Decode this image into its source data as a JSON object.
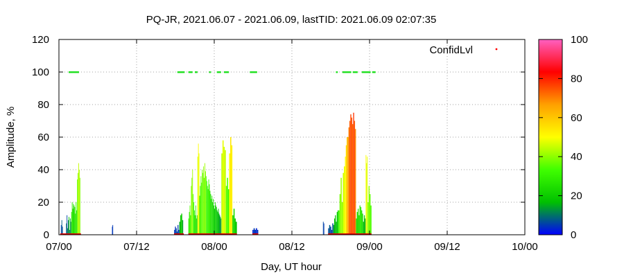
{
  "chart_data": {
    "type": "bar",
    "title": "PQ-JR, 2021.06.07 - 2021.06.09, lastTID: 2021.06.09 02:07:35",
    "xlabel": "Day, UT hour",
    "ylabel": "Amplitude, %",
    "x_ticks": [
      "07/00",
      "07/12",
      "08/00",
      "08/12",
      "09/00",
      "09/12",
      "10/00"
    ],
    "xlim_hours": [
      0,
      72
    ],
    "ylim": [
      0,
      120
    ],
    "y_ticks": [
      0,
      20,
      40,
      60,
      80,
      100,
      120
    ],
    "grid": true,
    "legend": {
      "label": "ConfidLvl",
      "placement": "top-right",
      "marker_color": "#ff0000"
    },
    "colorbar": {
      "ticks": [
        0,
        20,
        40,
        60,
        80,
        100
      ],
      "range": [
        0,
        100
      ],
      "stops": [
        "#0000ff",
        "#00c000",
        "#40ff00",
        "#ffff00",
        "#ffa000",
        "#ff0000",
        "#ff60c0"
      ]
    },
    "segments": [
      {
        "hour_start": 0.3,
        "hour_end": 0.6,
        "amp": [
          6,
          9,
          5
        ],
        "confid": [
          5,
          8,
          6
        ]
      },
      {
        "hour_start": 1.1,
        "hour_end": 1.9,
        "amp": [
          7,
          12,
          4,
          9,
          11,
          3,
          10,
          8
        ],
        "confid": [
          10,
          6,
          12,
          9,
          20,
          8,
          14,
          11
        ]
      },
      {
        "hour_start": 1.9,
        "hour_end": 2.8,
        "amp": [
          14,
          20,
          16,
          19,
          18,
          17,
          13,
          20,
          15
        ],
        "confid": [
          26,
          28,
          25,
          24,
          27,
          26,
          25,
          29,
          24
        ]
      },
      {
        "hour_start": 2.8,
        "hour_end": 3.3,
        "amp": [
          34,
          38,
          44,
          40,
          35
        ],
        "confid": [
          38,
          40,
          45,
          42,
          39
        ]
      },
      {
        "hour_start": 8.2,
        "hour_end": 8.35,
        "amp": [
          5,
          6
        ],
        "confid": [
          4,
          5
        ]
      },
      {
        "hour_start": 17.8,
        "hour_end": 18.6,
        "amp": [
          3,
          5,
          4,
          2,
          6,
          3
        ],
        "confid": [
          5,
          4,
          6,
          8,
          5,
          4
        ]
      },
      {
        "hour_start": 18.6,
        "hour_end": 19.2,
        "amp": [
          8,
          12,
          13,
          9
        ],
        "confid": [
          15,
          18,
          20,
          14
        ]
      },
      {
        "hour_start": 20.0,
        "hour_end": 21.4,
        "amp": [
          10,
          14,
          18,
          12,
          30,
          35,
          40,
          25,
          20,
          15,
          12,
          18,
          10,
          12
        ],
        "confid": [
          30,
          28,
          35,
          32,
          40,
          38,
          42,
          34,
          30,
          28,
          26,
          30,
          24,
          22
        ]
      },
      {
        "hour_start": 21.4,
        "hour_end": 21.7,
        "amp": [
          48,
          56,
          50
        ],
        "confid": [
          46,
          50,
          48
        ]
      },
      {
        "hour_start": 21.7,
        "hour_end": 25.1,
        "amp": [
          24,
          30,
          36,
          32,
          40,
          38,
          42,
          35,
          44,
          39,
          36,
          33,
          30,
          28,
          34,
          31,
          27,
          25,
          22,
          24,
          20,
          22,
          18,
          16,
          20,
          18,
          17,
          15,
          14,
          16,
          13,
          12,
          11,
          10
        ],
        "confid": [
          28,
          32,
          36,
          34,
          38,
          36,
          40,
          35,
          42,
          38,
          34,
          32,
          30,
          28,
          33,
          31,
          27,
          25,
          24,
          26,
          22,
          24,
          20,
          18,
          22,
          20,
          19,
          17,
          16,
          18,
          15,
          14,
          13,
          12
        ]
      },
      {
        "hour_start": 25.1,
        "hour_end": 25.8,
        "amp": [
          50,
          58,
          54,
          52
        ],
        "confid": [
          44,
          48,
          46,
          45
        ]
      },
      {
        "hour_start": 25.8,
        "hour_end": 26.3,
        "amp": [
          30,
          35,
          28
        ],
        "confid": [
          36,
          34,
          32
        ]
      },
      {
        "hour_start": 26.3,
        "hour_end": 26.8,
        "amp": [
          50,
          60,
          55
        ],
        "confid": [
          50,
          54,
          52
        ]
      },
      {
        "hour_start": 26.8,
        "hour_end": 27.5,
        "amp": [
          12,
          16,
          10,
          8
        ],
        "confid": [
          22,
          24,
          20,
          18
        ]
      },
      {
        "hour_start": 29.9,
        "hour_end": 30.8,
        "amp": [
          3,
          4,
          3,
          4,
          3
        ],
        "confid": [
          3,
          5,
          4,
          3,
          4
        ]
      },
      {
        "hour_start": 40.8,
        "hour_end": 41.0,
        "amp": [
          8,
          7
        ],
        "confid": [
          6,
          5
        ]
      },
      {
        "hour_start": 41.6,
        "hour_end": 42.4,
        "amp": [
          4,
          6,
          5,
          3,
          7
        ],
        "confid": [
          6,
          8,
          5,
          6,
          7
        ]
      },
      {
        "hour_start": 42.4,
        "hour_end": 43.2,
        "amp": [
          6,
          10,
          12,
          8,
          14,
          15
        ],
        "confid": [
          14,
          16,
          18,
          15,
          20,
          22
        ]
      },
      {
        "hour_start": 43.2,
        "hour_end": 44.2,
        "amp": [
          15,
          25,
          35,
          20,
          38,
          42
        ],
        "confid": [
          34,
          38,
          42,
          40,
          46,
          48
        ]
      },
      {
        "hour_start": 44.2,
        "hour_end": 44.6,
        "amp": [
          48,
          55,
          60
        ],
        "confid": [
          50,
          56,
          60
        ]
      },
      {
        "hour_start": 44.6,
        "hour_end": 45.9,
        "amp": [
          60,
          66,
          70,
          74,
          72,
          68,
          75,
          70,
          65
        ],
        "confid": [
          66,
          70,
          74,
          76,
          75,
          72,
          78,
          74,
          70
        ]
      },
      {
        "hour_start": 45.9,
        "hour_end": 47.0,
        "amp": [
          10,
          14,
          16,
          12,
          18,
          17,
          15,
          13
        ],
        "confid": [
          22,
          24,
          26,
          22,
          28,
          27,
          25,
          23
        ]
      },
      {
        "hour_start": 47.0,
        "hour_end": 47.4,
        "amp": [
          8,
          12,
          10
        ],
        "confid": [
          16,
          18,
          14
        ]
      },
      {
        "hour_start": 47.4,
        "hour_end": 47.7,
        "amp": [
          49,
          44,
          48
        ],
        "confid": [
          50,
          46,
          48
        ]
      },
      {
        "hour_start": 47.7,
        "hour_end": 48.3,
        "amp": [
          20,
          30,
          25,
          18
        ],
        "confid": [
          38,
          40,
          36,
          34
        ]
      }
    ],
    "points_100": [
      [
        1.5,
        3.0
      ],
      [
        18.3,
        19.3
      ],
      [
        20.0,
        20.6
      ],
      [
        21.0,
        21.3
      ],
      [
        23.2,
        23.4
      ],
      [
        24.4,
        25.0
      ],
      [
        25.5,
        26.2
      ],
      [
        29.5,
        30.5
      ],
      [
        42.8,
        43.0
      ],
      [
        43.8,
        45.0
      ],
      [
        45.4,
        46.0
      ],
      [
        46.8,
        48.0
      ],
      [
        48.4,
        48.8
      ]
    ]
  }
}
